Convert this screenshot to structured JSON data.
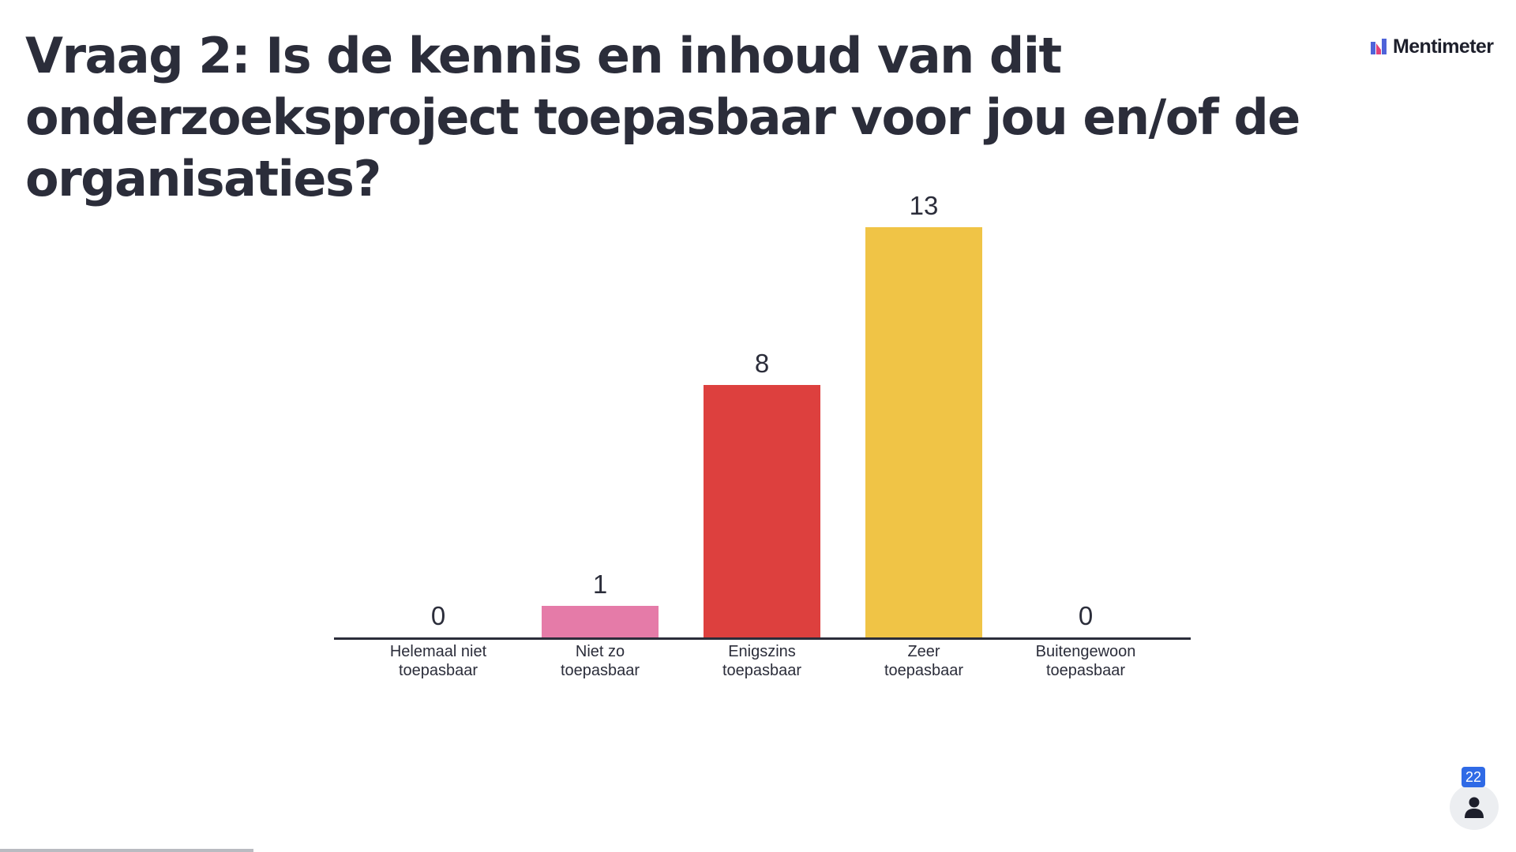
{
  "slide": {
    "question": "Vraag 2: Is de kennis en inhoud van dit onderzoeksproject toepasbaar voor jou en/of de organisaties?",
    "progress_fraction": 0.167
  },
  "brand": {
    "name": "Mentimeter",
    "icon": "mentimeter-logo-icon"
  },
  "participants": {
    "count": "22",
    "icon": "person-icon"
  },
  "chart_data": {
    "type": "bar",
    "title": "Vraag 2: Is de kennis en inhoud van dit onderzoeksproject toepasbaar voor jou en/of de organisaties?",
    "categories": [
      [
        "Helemaal niet",
        "toepasbaar"
      ],
      [
        "Niet zo",
        "toepasbaar"
      ],
      [
        "Enigszins",
        "toepasbaar"
      ],
      [
        "Zeer",
        "toepasbaar"
      ],
      [
        "Buitengewoon",
        "toepasbaar"
      ]
    ],
    "values": [
      0,
      1,
      8,
      13,
      0
    ],
    "colors": [
      "#5a6fd6",
      "#e57ba8",
      "#dd403e",
      "#f0c446",
      "#4a9b8e"
    ],
    "xlabel": "",
    "ylabel": "",
    "ylim": [
      0,
      13
    ],
    "grid": false,
    "legend": "none",
    "data_labels": true
  }
}
